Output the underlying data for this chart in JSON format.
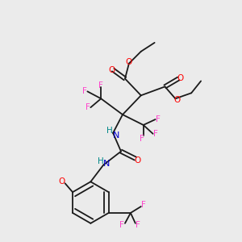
{
  "bg_color": "#ebebeb",
  "bond_color": "#1a1a1a",
  "colors": {
    "O": "#ff0000",
    "N": "#0000cc",
    "F": "#ff44cc",
    "H": "#008888"
  },
  "lw": 1.3
}
